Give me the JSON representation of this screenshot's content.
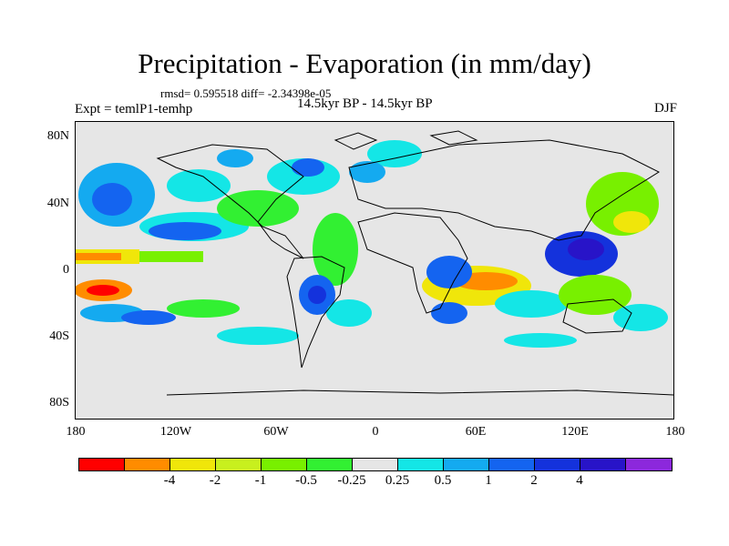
{
  "title": "Precipitation - Evaporation (in mm/day)",
  "stats": "rmsd= 0.595518 diff= -2.34398e-05",
  "experiment": "Expt = temlP1-temhp",
  "period": "14.5kyr BP - 14.5kyr BP",
  "season": "DJF",
  "map": {
    "projection": "cylindrical-equidistant",
    "land_color": "#e6e6e6",
    "lat_labels": [
      "80N",
      "40N",
      "0",
      "40S",
      "80S"
    ],
    "lon_labels": [
      "180",
      "120W",
      "60W",
      "0",
      "60E",
      "120E",
      "180"
    ]
  },
  "colorbar": {
    "colors": [
      "#ff0000",
      "#ff8c00",
      "#f0e60a",
      "#c8f01e",
      "#78f000",
      "#32f032",
      "#e6e6e6",
      "#14e6e6",
      "#14aaf0",
      "#1464f0",
      "#1432dc",
      "#2814c8",
      "#8c28dc"
    ],
    "labels": [
      "-4",
      "-2",
      "-1",
      "-0.5",
      "-0.25",
      "0.25",
      "0.5",
      "1",
      "2",
      "4"
    ]
  }
}
